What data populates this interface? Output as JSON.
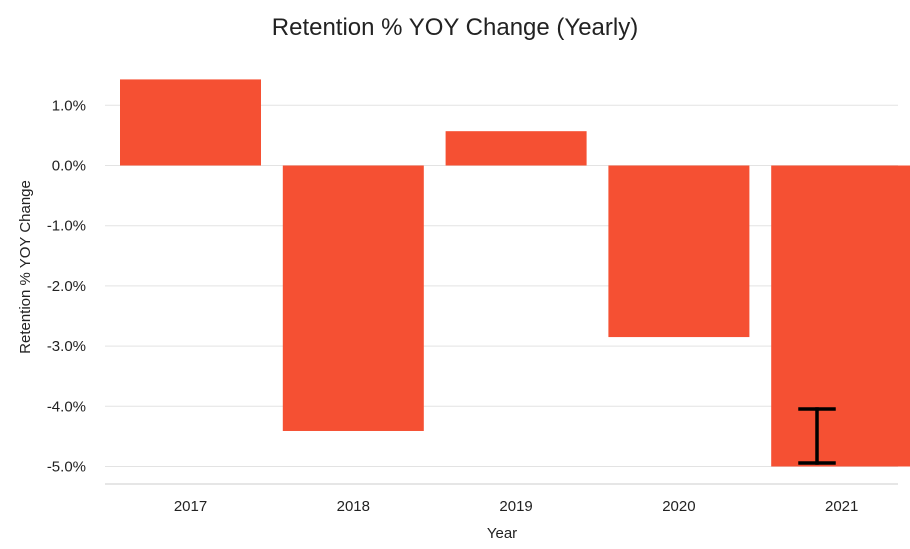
{
  "chart_data": {
    "type": "bar",
    "title": "Retention % YOY Change (Yearly)",
    "xlabel": "Year",
    "ylabel": "Retention % YOY Change",
    "categories": [
      "2017",
      "2018",
      "2019",
      "2020",
      "2021"
    ],
    "values": [
      1.43,
      -4.41,
      0.57,
      -2.85,
      -5.0
    ],
    "ylim": [
      -5.0,
      1.5
    ],
    "yticks": [
      1.0,
      0.0,
      -1.0,
      -2.0,
      -3.0,
      -4.0,
      -5.0
    ],
    "ytick_labels": [
      "1.0%",
      "0.0%",
      "-1.0%",
      "-2.0%",
      "-3.0%",
      "-4.0%",
      "-5.0%"
    ],
    "grid": true,
    "bar_color": "#f55033"
  }
}
